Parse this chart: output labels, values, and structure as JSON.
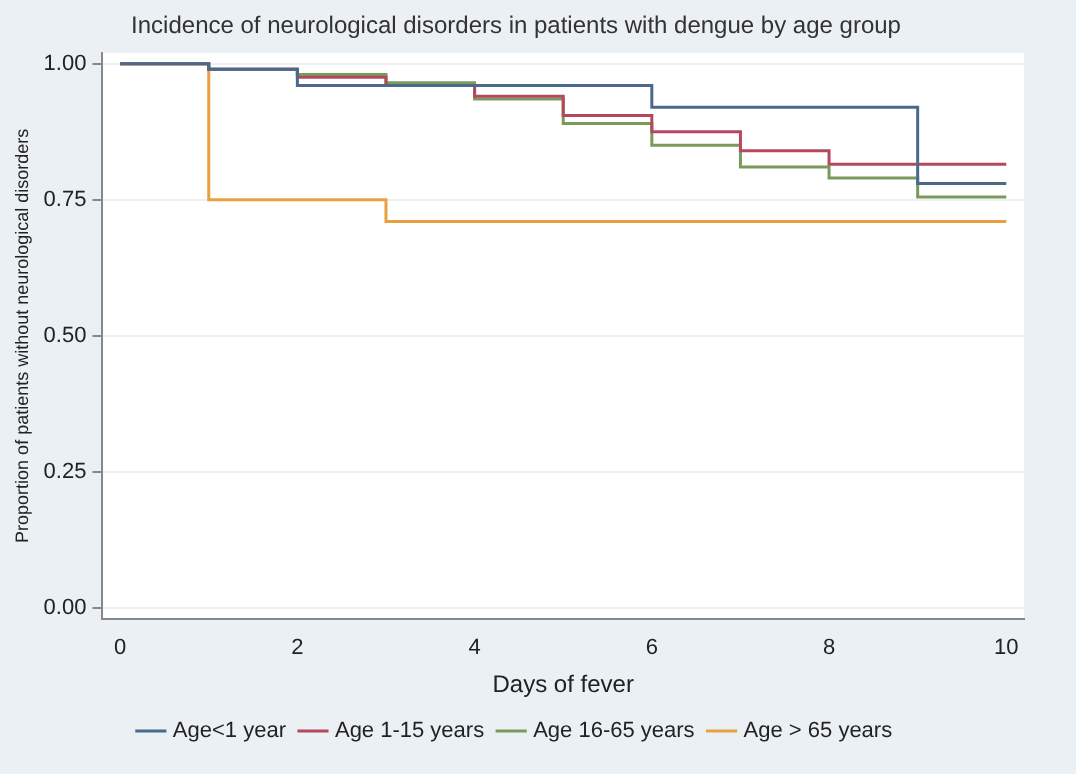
{
  "chart_data": {
    "type": "step",
    "title": "Incidence of neurological disorders in patients with dengue by age group",
    "xlabel": "Days of fever",
    "ylabel": "Proportion of patients without neurological disorders",
    "xlim": [
      -0.2,
      10.2
    ],
    "xticks": [
      0,
      2,
      4,
      6,
      8,
      10
    ],
    "ylim": [
      -0.02,
      1.02
    ],
    "yticks": [
      {
        "value": 0,
        "label": "0.00"
      },
      {
        "value": 0.25,
        "label": "0.25"
      },
      {
        "value": 0.5,
        "label": "0.50"
      },
      {
        "value": 0.75,
        "label": "0.75"
      },
      {
        "value": 1,
        "label": "1.00"
      }
    ],
    "grid": "y",
    "legend": "bottom",
    "marker": "none",
    "line_style": "solid",
    "series": [
      {
        "name": "Age<1 year",
        "color": "#4a6a8c",
        "x": [
          0,
          1,
          2,
          6,
          9,
          10
        ],
        "values": [
          1,
          0.99,
          0.96,
          0.92,
          0.78,
          0.78
        ]
      },
      {
        "name": "Age 1-15 years",
        "color": "#b5475f",
        "x": [
          0,
          1,
          2,
          3,
          4,
          5,
          6,
          7,
          8,
          10
        ],
        "values": [
          1,
          0.99,
          0.975,
          0.96,
          0.94,
          0.905,
          0.875,
          0.84,
          0.815,
          0.815
        ]
      },
      {
        "name": "Age 16-65 years",
        "color": "#7a9a5a",
        "x": [
          0,
          1,
          2,
          3,
          4,
          5,
          6,
          7,
          8,
          9,
          10
        ],
        "values": [
          1,
          0.99,
          0.98,
          0.965,
          0.935,
          0.89,
          0.85,
          0.81,
          0.79,
          0.755,
          0.755
        ]
      },
      {
        "name": "Age > 65 years",
        "color": "#e8a040",
        "x": [
          0,
          1,
          3,
          10
        ],
        "values": [
          1,
          0.75,
          0.71,
          0.71
        ]
      }
    ]
  }
}
